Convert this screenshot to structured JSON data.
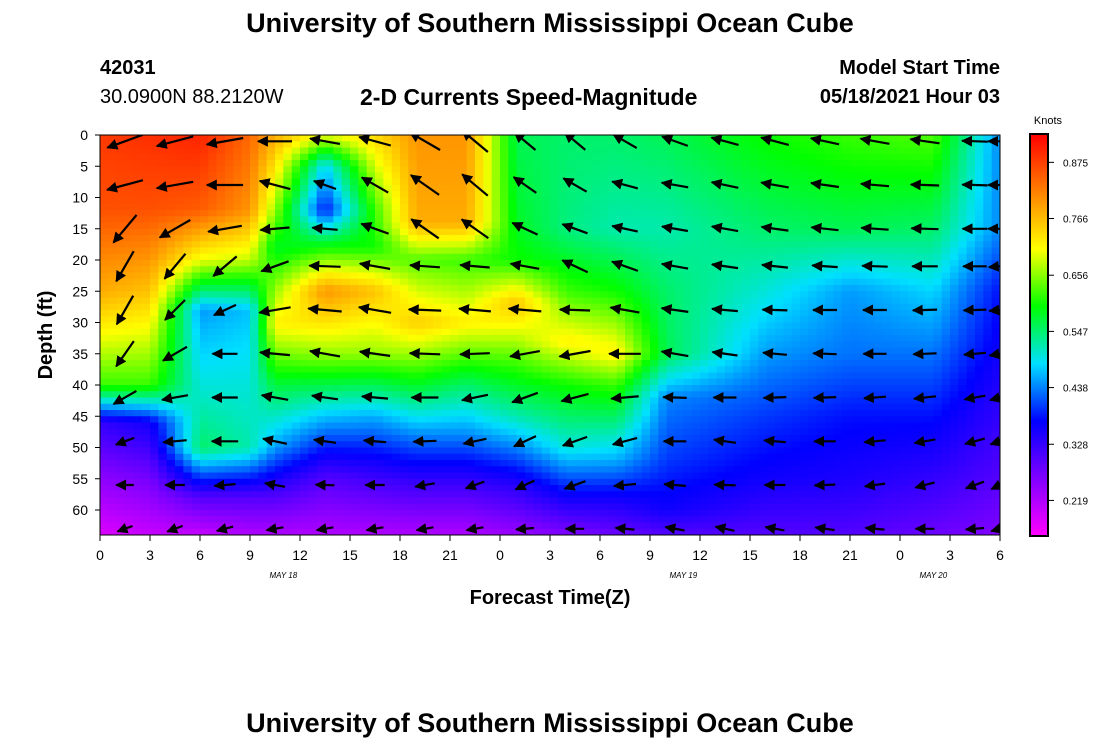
{
  "page": {
    "title_top": "University of Southern Mississippi Ocean Cube",
    "title_bottom": "University of Southern Mississippi Ocean Cube",
    "station_id": "42031",
    "station_coords": "30.0900N  88.2120W",
    "model_start_label": "Model Start Time",
    "model_start_value": "05/18/2021 Hour 03"
  },
  "chart_data": {
    "type": "heatmap",
    "title": "2-D Currents Speed-Magnitude",
    "xlabel": "Forecast Time(Z)",
    "ylabel": "Depth (ft)",
    "x_ticks": [
      "0",
      "3",
      "6",
      "9",
      "12",
      "15",
      "18",
      "21",
      "0",
      "3",
      "6",
      "9",
      "12",
      "15",
      "18",
      "21",
      "0",
      "3",
      "6"
    ],
    "x_hours": [
      0,
      3,
      6,
      9,
      12,
      15,
      18,
      21,
      24,
      27,
      30,
      33,
      36,
      39,
      42,
      45,
      48,
      51,
      54
    ],
    "date_labels": [
      {
        "label": "MAY 18",
        "hour": 11
      },
      {
        "label": "MAY 19",
        "hour": 35
      },
      {
        "label": "MAY 20",
        "hour": 50
      }
    ],
    "xlim": [
      0,
      54
    ],
    "y_ticks": [
      0,
      5,
      10,
      15,
      20,
      25,
      30,
      35,
      40,
      45,
      50,
      55,
      60
    ],
    "ylim": [
      0,
      64
    ],
    "y_inverted": true,
    "colorbar": {
      "unit": "Knots",
      "ticks": [
        "0.875",
        "0.766",
        "0.656",
        "0.547",
        "0.438",
        "0.328",
        "0.219"
      ],
      "tick_values": [
        0.875,
        0.766,
        0.656,
        0.547,
        0.438,
        0.328,
        0.219
      ],
      "range": [
        0.15,
        0.93
      ],
      "colors": [
        "#ff00ff",
        "#8000ff",
        "#0000ff",
        "#00e0ff",
        "#00ff00",
        "#ffff00",
        "#ff8000",
        "#ff0000"
      ]
    },
    "columns": [
      {
        "hour": 0,
        "profile": [
          [
            0,
            0.88
          ],
          [
            12,
            0.86
          ],
          [
            25,
            0.78
          ],
          [
            40,
            0.62
          ],
          [
            46,
            0.33
          ],
          [
            55,
            0.25
          ],
          [
            64,
            0.18
          ]
        ]
      },
      {
        "hour": 3,
        "profile": [
          [
            0,
            0.89
          ],
          [
            12,
            0.86
          ],
          [
            25,
            0.76
          ],
          [
            40,
            0.62
          ],
          [
            46,
            0.36
          ],
          [
            55,
            0.27
          ],
          [
            64,
            0.2
          ]
        ]
      },
      {
        "hour": 6,
        "profile": [
          [
            0,
            0.9
          ],
          [
            12,
            0.85
          ],
          [
            20,
            0.7
          ],
          [
            28,
            0.45
          ],
          [
            40,
            0.5
          ],
          [
            50,
            0.55
          ],
          [
            58,
            0.3
          ],
          [
            64,
            0.2
          ]
        ]
      },
      {
        "hour": 9,
        "profile": [
          [
            0,
            0.84
          ],
          [
            12,
            0.8
          ],
          [
            20,
            0.68
          ],
          [
            28,
            0.47
          ],
          [
            40,
            0.5
          ],
          [
            50,
            0.52
          ],
          [
            58,
            0.3
          ],
          [
            64,
            0.22
          ]
        ]
      },
      {
        "hour": 10.5,
        "profile": [
          [
            0,
            0.78
          ],
          [
            12,
            0.66
          ],
          [
            18,
            0.58
          ],
          [
            30,
            0.72
          ],
          [
            40,
            0.57
          ],
          [
            50,
            0.45
          ],
          [
            58,
            0.3
          ],
          [
            64,
            0.22
          ]
        ]
      },
      {
        "hour": 13.5,
        "profile": [
          [
            0,
            0.7
          ],
          [
            5,
            0.48
          ],
          [
            12,
            0.38
          ],
          [
            17,
            0.57
          ],
          [
            25,
            0.8
          ],
          [
            35,
            0.66
          ],
          [
            45,
            0.47
          ],
          [
            55,
            0.3
          ],
          [
            64,
            0.22
          ]
        ]
      },
      {
        "hour": 16.5,
        "profile": [
          [
            0,
            0.74
          ],
          [
            12,
            0.62
          ],
          [
            18,
            0.6
          ],
          [
            25,
            0.76
          ],
          [
            35,
            0.66
          ],
          [
            45,
            0.46
          ],
          [
            55,
            0.32
          ],
          [
            64,
            0.22
          ]
        ]
      },
      {
        "hour": 19,
        "profile": [
          [
            0,
            0.8
          ],
          [
            14,
            0.78
          ],
          [
            20,
            0.63
          ],
          [
            30,
            0.75
          ],
          [
            40,
            0.58
          ],
          [
            48,
            0.44
          ],
          [
            56,
            0.32
          ],
          [
            64,
            0.22
          ]
        ]
      },
      {
        "hour": 22,
        "profile": [
          [
            0,
            0.8
          ],
          [
            14,
            0.78
          ],
          [
            20,
            0.62
          ],
          [
            30,
            0.72
          ],
          [
            40,
            0.55
          ],
          [
            48,
            0.44
          ],
          [
            56,
            0.32
          ],
          [
            64,
            0.22
          ]
        ]
      },
      {
        "hour": 25,
        "profile": [
          [
            0,
            0.56
          ],
          [
            14,
            0.58
          ],
          [
            20,
            0.6
          ],
          [
            27,
            0.76
          ],
          [
            35,
            0.64
          ],
          [
            45,
            0.52
          ],
          [
            56,
            0.34
          ],
          [
            64,
            0.24
          ]
        ]
      },
      {
        "hour": 28,
        "profile": [
          [
            0,
            0.55
          ],
          [
            15,
            0.54
          ],
          [
            25,
            0.62
          ],
          [
            33,
            0.72
          ],
          [
            40,
            0.6
          ],
          [
            50,
            0.5
          ],
          [
            58,
            0.36
          ],
          [
            64,
            0.26
          ]
        ]
      },
      {
        "hour": 31,
        "profile": [
          [
            0,
            0.55
          ],
          [
            15,
            0.52
          ],
          [
            25,
            0.6
          ],
          [
            35,
            0.72
          ],
          [
            40,
            0.62
          ],
          [
            52,
            0.46
          ],
          [
            58,
            0.36
          ],
          [
            64,
            0.28
          ]
        ]
      },
      {
        "hour": 34,
        "profile": [
          [
            0,
            0.56
          ],
          [
            15,
            0.52
          ],
          [
            25,
            0.55
          ],
          [
            35,
            0.56
          ],
          [
            42,
            0.44
          ],
          [
            52,
            0.4
          ],
          [
            60,
            0.36
          ],
          [
            64,
            0.3
          ]
        ]
      },
      {
        "hour": 40,
        "profile": [
          [
            0,
            0.6
          ],
          [
            15,
            0.55
          ],
          [
            25,
            0.5
          ],
          [
            35,
            0.45
          ],
          [
            45,
            0.4
          ],
          [
            55,
            0.36
          ],
          [
            64,
            0.3
          ]
        ]
      },
      {
        "hour": 45,
        "profile": [
          [
            0,
            0.62
          ],
          [
            15,
            0.56
          ],
          [
            25,
            0.45
          ],
          [
            35,
            0.43
          ],
          [
            45,
            0.38
          ],
          [
            55,
            0.35
          ],
          [
            64,
            0.3
          ]
        ]
      },
      {
        "hour": 50,
        "profile": [
          [
            0,
            0.63
          ],
          [
            15,
            0.55
          ],
          [
            25,
            0.48
          ],
          [
            35,
            0.43
          ],
          [
            45,
            0.38
          ],
          [
            55,
            0.33
          ],
          [
            64,
            0.28
          ]
        ]
      },
      {
        "hour": 54,
        "profile": [
          [
            0,
            0.44
          ],
          [
            15,
            0.44
          ],
          [
            25,
            0.38
          ],
          [
            35,
            0.36
          ],
          [
            45,
            0.33
          ],
          [
            55,
            0.3
          ],
          [
            64,
            0.26
          ]
        ]
      }
    ],
    "vector_hours": [
      1.5,
      4.5,
      7.5,
      10.5,
      13.5,
      16.5,
      19.5,
      22.5,
      25.5,
      28.5,
      31.5,
      34.5,
      37.5,
      40.5,
      43.5,
      46.5,
      49.5,
      52.5,
      54
    ],
    "vector_depths": [
      1,
      8,
      15,
      21,
      28,
      35,
      42,
      49,
      56,
      63
    ],
    "vector_dirs_deg": [
      [
        200,
        195,
        190,
        180,
        170,
        165,
        150,
        140,
        140,
        140,
        150,
        160,
        165,
        165,
        168,
        170,
        172,
        178,
        180
      ],
      [
        195,
        190,
        180,
        165,
        160,
        150,
        145,
        140,
        145,
        150,
        165,
        170,
        168,
        170,
        172,
        175,
        178,
        178,
        180
      ],
      [
        230,
        210,
        190,
        185,
        175,
        160,
        145,
        145,
        155,
        160,
        168,
        170,
        170,
        172,
        174,
        176,
        178,
        180,
        180
      ],
      [
        240,
        230,
        220,
        200,
        178,
        170,
        176,
        175,
        170,
        155,
        160,
        170,
        172,
        174,
        176,
        178,
        180,
        180,
        185
      ],
      [
        240,
        225,
        205,
        190,
        175,
        170,
        178,
        175,
        175,
        178,
        170,
        172,
        175,
        178,
        180,
        180,
        182,
        182,
        185
      ],
      [
        235,
        210,
        180,
        175,
        170,
        172,
        178,
        182,
        190,
        190,
        180,
        170,
        172,
        175,
        178,
        180,
        182,
        185,
        190
      ],
      [
        210,
        190,
        180,
        170,
        172,
        175,
        180,
        192,
        200,
        195,
        185,
        178,
        180,
        182,
        182,
        184,
        186,
        190,
        195
      ],
      [
        200,
        185,
        180,
        168,
        172,
        175,
        182,
        192,
        205,
        200,
        195,
        180,
        172,
        175,
        180,
        185,
        190,
        195,
        198
      ],
      [
        180,
        180,
        185,
        170,
        178,
        180,
        190,
        200,
        205,
        200,
        185,
        175,
        178,
        180,
        182,
        188,
        195,
        200,
        205
      ],
      [
        200,
        200,
        195,
        190,
        190,
        190,
        190,
        190,
        185,
        180,
        175,
        170,
        168,
        170,
        172,
        175,
        180,
        185,
        195
      ]
    ]
  }
}
